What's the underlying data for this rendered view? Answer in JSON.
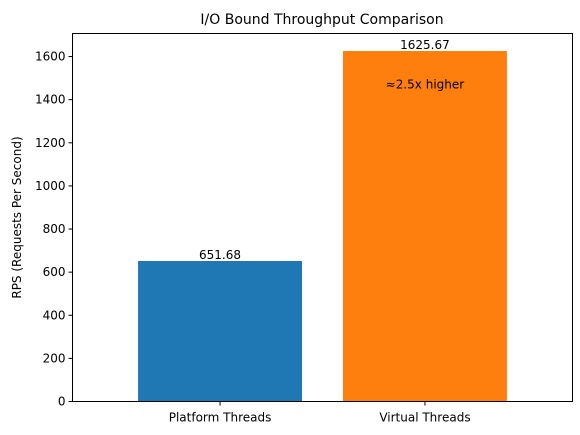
{
  "chart_data": {
    "type": "bar",
    "title": "I/O Bound Throughput Comparison",
    "xlabel": "",
    "ylabel": "RPS (Requests Per Second)",
    "ylim": [
      0,
      1706.95
    ],
    "yticks": [
      0,
      200,
      400,
      600,
      800,
      1000,
      1200,
      1400,
      1600
    ],
    "grid": false,
    "categories": [
      "Platform Threads",
      "Virtual Threads"
    ],
    "values": [
      651.68,
      1625.67
    ],
    "value_labels": [
      "651.68",
      "1625.67"
    ],
    "colors": [
      "#1f77b4",
      "#ff7f0e"
    ],
    "annotation": {
      "text": "≈2.5x higher",
      "category": "Virtual Threads",
      "y": 1470
    }
  }
}
